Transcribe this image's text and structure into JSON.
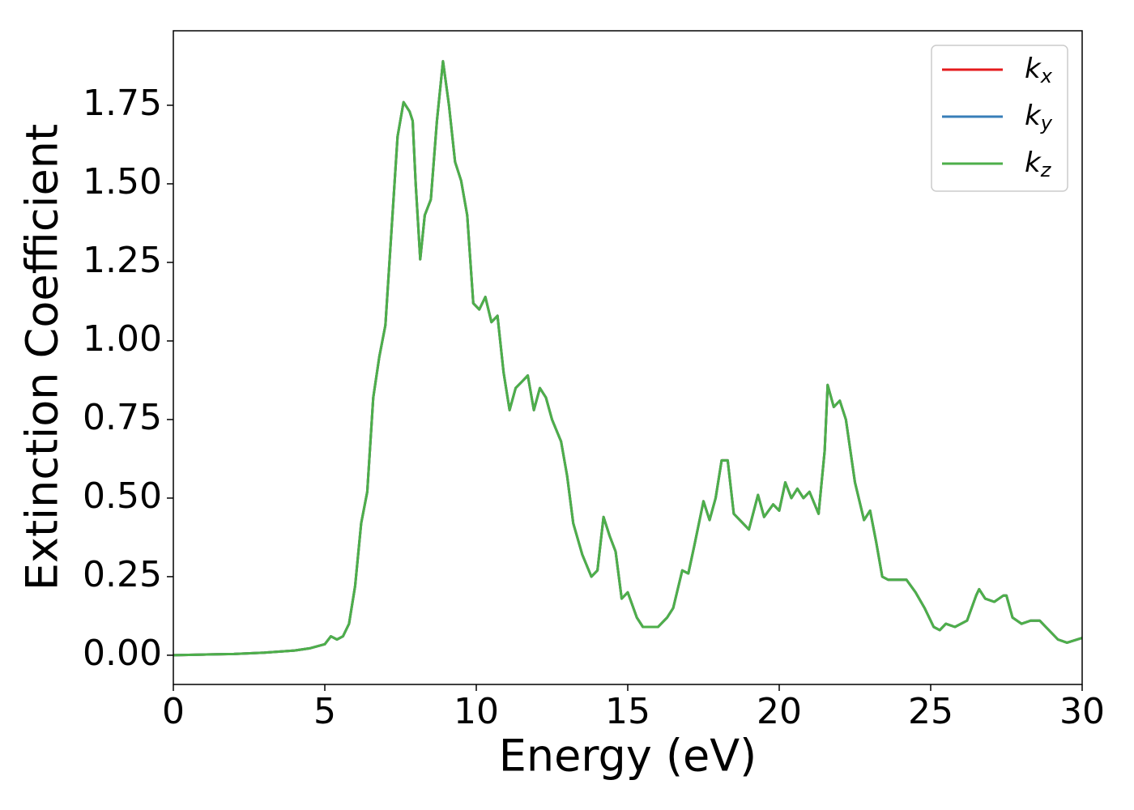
{
  "chart_data": {
    "type": "line",
    "xlabel": "Energy (eV)",
    "ylabel": "Extinction Coefficient",
    "x": [
      0,
      1,
      2,
      3,
      4,
      4.5,
      5.0,
      5.2,
      5.4,
      5.6,
      5.8,
      6.0,
      6.2,
      6.4,
      6.6,
      6.8,
      7.0,
      7.2,
      7.4,
      7.6,
      7.8,
      7.9,
      8.0,
      8.15,
      8.3,
      8.5,
      8.7,
      8.9,
      9.1,
      9.3,
      9.5,
      9.7,
      9.9,
      10.1,
      10.3,
      10.5,
      10.7,
      10.9,
      11.1,
      11.3,
      11.5,
      11.7,
      11.9,
      12.1,
      12.3,
      12.5,
      12.8,
      13.0,
      13.2,
      13.5,
      13.8,
      14.0,
      14.2,
      14.4,
      14.6,
      14.8,
      15.0,
      15.3,
      15.5,
      15.8,
      16.0,
      16.3,
      16.5,
      16.8,
      17.0,
      17.2,
      17.5,
      17.7,
      17.9,
      18.1,
      18.3,
      18.5,
      18.7,
      19.0,
      19.3,
      19.5,
      19.8,
      20.0,
      20.2,
      20.4,
      20.6,
      20.8,
      21.0,
      21.3,
      21.5,
      21.6,
      21.8,
      22.0,
      22.2,
      22.5,
      22.8,
      23.0,
      23.2,
      23.4,
      23.6,
      24.0,
      24.2,
      24.5,
      24.8,
      25.1,
      25.3,
      25.5,
      25.8,
      26.2,
      26.5,
      26.6,
      26.8,
      27.1,
      27.4,
      27.5,
      27.7,
      28.0,
      28.3,
      28.6,
      28.8,
      29.2,
      29.5,
      30.0
    ],
    "series": [
      {
        "name": "k_x",
        "color": "#e41a1c",
        "values": [
          0,
          0.002,
          0.004,
          0.008,
          0.015,
          0.022,
          0.035,
          0.06,
          0.05,
          0.06,
          0.1,
          0.22,
          0.42,
          0.52,
          0.82,
          0.95,
          1.05,
          1.35,
          1.65,
          1.76,
          1.73,
          1.7,
          1.5,
          1.26,
          1.4,
          1.45,
          1.7,
          1.89,
          1.75,
          1.57,
          1.51,
          1.4,
          1.12,
          1.1,
          1.14,
          1.06,
          1.08,
          0.9,
          0.78,
          0.85,
          0.87,
          0.89,
          0.78,
          0.85,
          0.82,
          0.75,
          0.68,
          0.57,
          0.42,
          0.32,
          0.25,
          0.27,
          0.44,
          0.38,
          0.33,
          0.18,
          0.2,
          0.12,
          0.09,
          0.09,
          0.09,
          0.12,
          0.15,
          0.27,
          0.26,
          0.35,
          0.49,
          0.43,
          0.5,
          0.62,
          0.62,
          0.45,
          0.43,
          0.4,
          0.51,
          0.44,
          0.48,
          0.46,
          0.55,
          0.5,
          0.53,
          0.5,
          0.52,
          0.45,
          0.65,
          0.86,
          0.79,
          0.81,
          0.75,
          0.55,
          0.43,
          0.46,
          0.36,
          0.25,
          0.24,
          0.24,
          0.24,
          0.2,
          0.15,
          0.09,
          0.08,
          0.1,
          0.09,
          0.11,
          0.19,
          0.21,
          0.18,
          0.17,
          0.19,
          0.19,
          0.12,
          0.1,
          0.11,
          0.11,
          0.09,
          0.05,
          0.04,
          0.055
        ]
      },
      {
        "name": "k_y",
        "color": "#377eb8",
        "values": [
          0,
          0.002,
          0.004,
          0.008,
          0.015,
          0.022,
          0.035,
          0.06,
          0.05,
          0.06,
          0.1,
          0.22,
          0.42,
          0.52,
          0.82,
          0.95,
          1.05,
          1.35,
          1.65,
          1.76,
          1.73,
          1.7,
          1.5,
          1.26,
          1.4,
          1.45,
          1.7,
          1.89,
          1.75,
          1.57,
          1.51,
          1.4,
          1.12,
          1.1,
          1.14,
          1.06,
          1.08,
          0.9,
          0.78,
          0.85,
          0.87,
          0.89,
          0.78,
          0.85,
          0.82,
          0.75,
          0.68,
          0.57,
          0.42,
          0.32,
          0.25,
          0.27,
          0.44,
          0.38,
          0.33,
          0.18,
          0.2,
          0.12,
          0.09,
          0.09,
          0.09,
          0.12,
          0.15,
          0.27,
          0.26,
          0.35,
          0.49,
          0.43,
          0.5,
          0.62,
          0.62,
          0.45,
          0.43,
          0.4,
          0.51,
          0.44,
          0.48,
          0.46,
          0.55,
          0.5,
          0.53,
          0.5,
          0.52,
          0.45,
          0.65,
          0.86,
          0.79,
          0.81,
          0.75,
          0.55,
          0.43,
          0.46,
          0.36,
          0.25,
          0.24,
          0.24,
          0.24,
          0.2,
          0.15,
          0.09,
          0.08,
          0.1,
          0.09,
          0.11,
          0.19,
          0.21,
          0.18,
          0.17,
          0.19,
          0.19,
          0.12,
          0.1,
          0.11,
          0.11,
          0.09,
          0.05,
          0.04,
          0.055
        ]
      },
      {
        "name": "k_z",
        "color": "#4daf4a",
        "values": [
          0,
          0.002,
          0.004,
          0.008,
          0.015,
          0.022,
          0.035,
          0.06,
          0.05,
          0.06,
          0.1,
          0.22,
          0.42,
          0.52,
          0.82,
          0.95,
          1.05,
          1.35,
          1.65,
          1.76,
          1.73,
          1.7,
          1.5,
          1.26,
          1.4,
          1.45,
          1.7,
          1.89,
          1.75,
          1.57,
          1.51,
          1.4,
          1.12,
          1.1,
          1.14,
          1.06,
          1.08,
          0.9,
          0.78,
          0.85,
          0.87,
          0.89,
          0.78,
          0.85,
          0.82,
          0.75,
          0.68,
          0.57,
          0.42,
          0.32,
          0.25,
          0.27,
          0.44,
          0.38,
          0.33,
          0.18,
          0.2,
          0.12,
          0.09,
          0.09,
          0.09,
          0.12,
          0.15,
          0.27,
          0.26,
          0.35,
          0.49,
          0.43,
          0.5,
          0.62,
          0.62,
          0.45,
          0.43,
          0.4,
          0.51,
          0.44,
          0.48,
          0.46,
          0.55,
          0.5,
          0.53,
          0.5,
          0.52,
          0.45,
          0.65,
          0.86,
          0.79,
          0.81,
          0.75,
          0.55,
          0.43,
          0.46,
          0.36,
          0.25,
          0.24,
          0.24,
          0.24,
          0.2,
          0.15,
          0.09,
          0.08,
          0.1,
          0.09,
          0.11,
          0.19,
          0.21,
          0.18,
          0.17,
          0.19,
          0.19,
          0.12,
          0.1,
          0.11,
          0.11,
          0.09,
          0.05,
          0.04,
          0.055
        ]
      }
    ],
    "xlim": [
      0,
      30
    ],
    "xticks": [
      0,
      5,
      10,
      15,
      20,
      25,
      30
    ],
    "ylim": [
      -0.093,
      1.987
    ],
    "yticks": [
      {
        "value": 0,
        "label": "0.00"
      },
      {
        "value": 0.25,
        "label": "0.25"
      },
      {
        "value": 0.5,
        "label": "0.50"
      },
      {
        "value": 0.75,
        "label": "0.75"
      },
      {
        "value": 1,
        "label": "1.00"
      },
      {
        "value": 1.25,
        "label": "1.25"
      },
      {
        "value": 1.5,
        "label": "1.50"
      },
      {
        "value": 1.75,
        "label": "1.75"
      }
    ],
    "grid": false,
    "legend": "upper right"
  }
}
